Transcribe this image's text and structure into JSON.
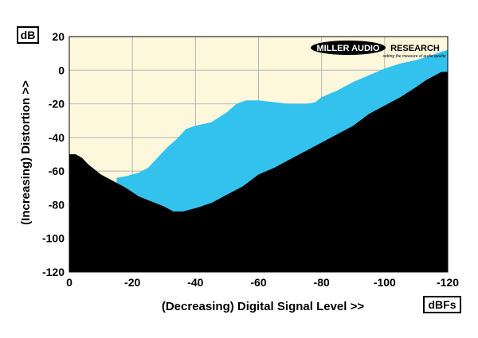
{
  "chart_data": {
    "type": "area",
    "xlabel": "(Decreasing) Digital Signal Level >>",
    "ylabel": "(Increasing) Distortion >>",
    "y_unit": "dB",
    "x_unit": "dBFs",
    "xlim": [
      0,
      -120
    ],
    "ylim": [
      -120,
      20
    ],
    "x_ticks": [
      "0",
      "-20",
      "-40",
      "-60",
      "-80",
      "-100",
      "-120"
    ],
    "y_ticks": [
      "20",
      "0",
      "-20",
      "-40",
      "-60",
      "-80",
      "-100",
      "-120"
    ],
    "grid": true,
    "logo": {
      "name": "MILLER AUDIO RESEARCH",
      "tagline": "setting the measure of audio quality"
    },
    "colors": {
      "background": "#fdf8dc",
      "band": "#33c1ee",
      "floor": "#000000",
      "grid": "#b5b5b5"
    },
    "series": [
      {
        "role": "distortion-upper",
        "x": [
          -15,
          -18,
          -22,
          -25,
          -28,
          -31,
          -34,
          -37,
          -40,
          -45,
          -50,
          -53,
          -56,
          -60,
          -65,
          -70,
          -75,
          -78,
          -80,
          -85,
          -90,
          -95,
          -100,
          -105,
          -110,
          -115,
          -118,
          -120
        ],
        "y": [
          -64,
          -63,
          -61,
          -58,
          -52,
          -46,
          -41,
          -35,
          -33,
          -31,
          -25,
          -20,
          -18,
          -18,
          -19,
          -20,
          -20,
          -19,
          -16,
          -12,
          -7,
          -3,
          1,
          4,
          6,
          9,
          11,
          12
        ]
      },
      {
        "role": "noise-floor",
        "x": [
          0,
          -2,
          -4,
          -6,
          -8,
          -10,
          -14,
          -18,
          -22,
          -26,
          -30,
          -33,
          -36,
          -40,
          -45,
          -50,
          -55,
          -60,
          -65,
          -70,
          -75,
          -80,
          -85,
          -90,
          -95,
          -100,
          -105,
          -110,
          -113,
          -116,
          -118,
          -120
        ],
        "y": [
          -50,
          -50,
          -52,
          -56,
          -59,
          -62,
          -66,
          -70,
          -75,
          -78,
          -81,
          -84,
          -84,
          -82,
          -79,
          -74,
          -69,
          -62,
          -58,
          -53,
          -48,
          -43,
          -38,
          -33,
          -26,
          -21,
          -16,
          -10,
          -6,
          -3,
          -1,
          -1
        ]
      }
    ]
  }
}
